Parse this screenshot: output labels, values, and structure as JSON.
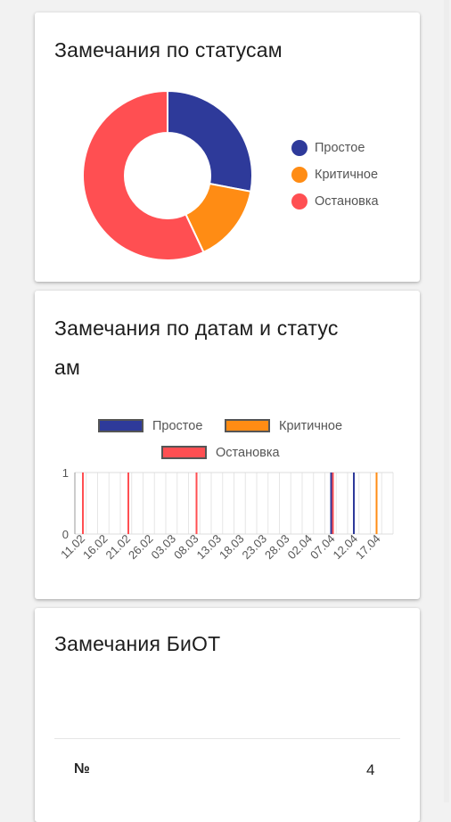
{
  "card1": {
    "title": "Замечания по статусам",
    "chart_data": {
      "type": "pie",
      "donut": true,
      "categories": [
        "Простое",
        "Критичное",
        "Остановка"
      ],
      "values": [
        28,
        15,
        57
      ],
      "colors": [
        "#2e3a9a",
        "#ff8c14",
        "#ff4f52"
      ],
      "legend_placement": "right"
    }
  },
  "card2": {
    "title_line1": "Замечания по датам и статус",
    "title_line2": "ам",
    "chart_data": {
      "type": "bar",
      "legend_placement": "top",
      "x_tick_labels": [
        "11.02",
        "16.02",
        "21.02",
        "26.02",
        "03.03",
        "08.03",
        "13.03",
        "18.03",
        "23.03",
        "28.03",
        "02.04",
        "07.04",
        "12.04",
        "17.04"
      ],
      "ylim": [
        0,
        1
      ],
      "yticks": [
        0,
        1
      ],
      "grid": true,
      "series": [
        {
          "name": "Простое",
          "color": "#2e3a9a",
          "points": [
            [
              "07.04",
              1
            ],
            [
              "12.04",
              1
            ]
          ]
        },
        {
          "name": "Критичное",
          "color": "#ff8c14",
          "points": [
            [
              "17.04",
              1
            ]
          ]
        },
        {
          "name": "Остановка",
          "color": "#ff4f52",
          "points": [
            [
              "11.02",
              1
            ],
            [
              "21.02",
              1
            ],
            [
              "08.03",
              1
            ],
            [
              "07.04",
              1
            ]
          ]
        }
      ]
    }
  },
  "card3": {
    "title": "Замечания БиОТ",
    "row_label": "№",
    "row_value": "4"
  }
}
